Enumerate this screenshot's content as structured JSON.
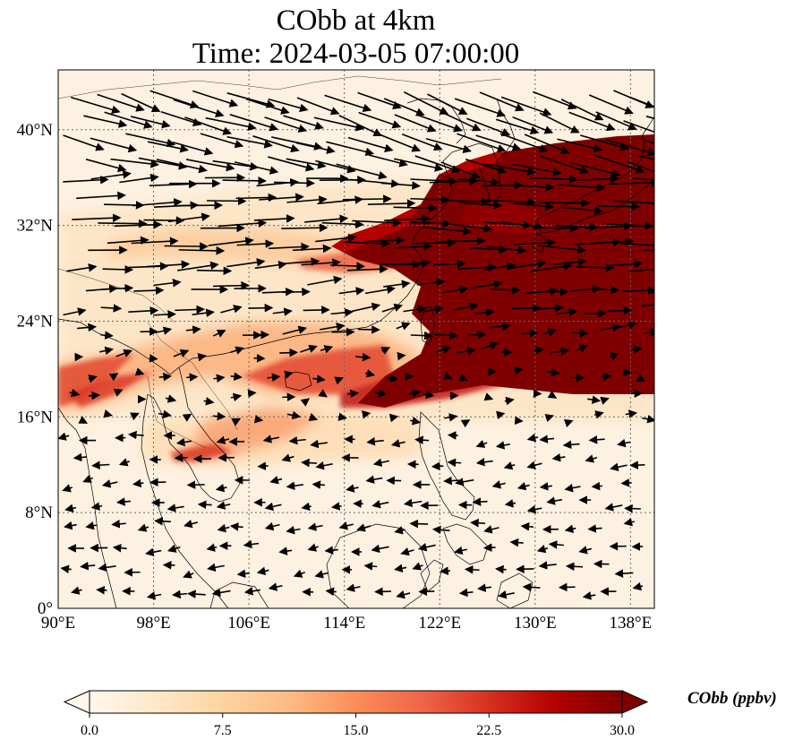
{
  "title": {
    "line1": "CObb at 4km",
    "line2": "Time: 2024-03-05 07:00:00"
  },
  "map": {
    "projection": "PlateCarree",
    "lon_range": [
      90,
      140
    ],
    "lat_range": [
      0,
      45
    ],
    "gridlines": true,
    "lon_ticks": [
      {
        "value": 90,
        "label": "90°E"
      },
      {
        "value": 98,
        "label": "98°E"
      },
      {
        "value": 106,
        "label": "106°E"
      },
      {
        "value": 114,
        "label": "114°E"
      },
      {
        "value": 122,
        "label": "122°E"
      },
      {
        "value": 130,
        "label": "130°E"
      },
      {
        "value": 138,
        "label": "138°E"
      }
    ],
    "lat_ticks": [
      {
        "value": 0,
        "label": "0°"
      },
      {
        "value": 8,
        "label": "8°N"
      },
      {
        "value": 16,
        "label": "16°N"
      },
      {
        "value": 24,
        "label": "24°N"
      },
      {
        "value": 32,
        "label": "32°N"
      },
      {
        "value": 40,
        "label": "40°N"
      }
    ],
    "field_name": "CObb",
    "plume_color": "#7f0000",
    "background_color": "#fdf1e1",
    "wind_vectors": "westerly flow north of ~20°N, weak easterlies in the tropics"
  },
  "colorbar": {
    "label": "CObb (ppbv)",
    "min": 0.0,
    "max": 30.0,
    "ticks": [
      "0.0",
      "7.5",
      "15.0",
      "22.5",
      "30.0"
    ],
    "extend": "both",
    "cmap": "OrRd",
    "colors": [
      "#fff7ec",
      "#fee8c8",
      "#fdd49e",
      "#fdbb84",
      "#fc8d59",
      "#ef6548",
      "#d7301f",
      "#b30000",
      "#7f0000"
    ]
  }
}
